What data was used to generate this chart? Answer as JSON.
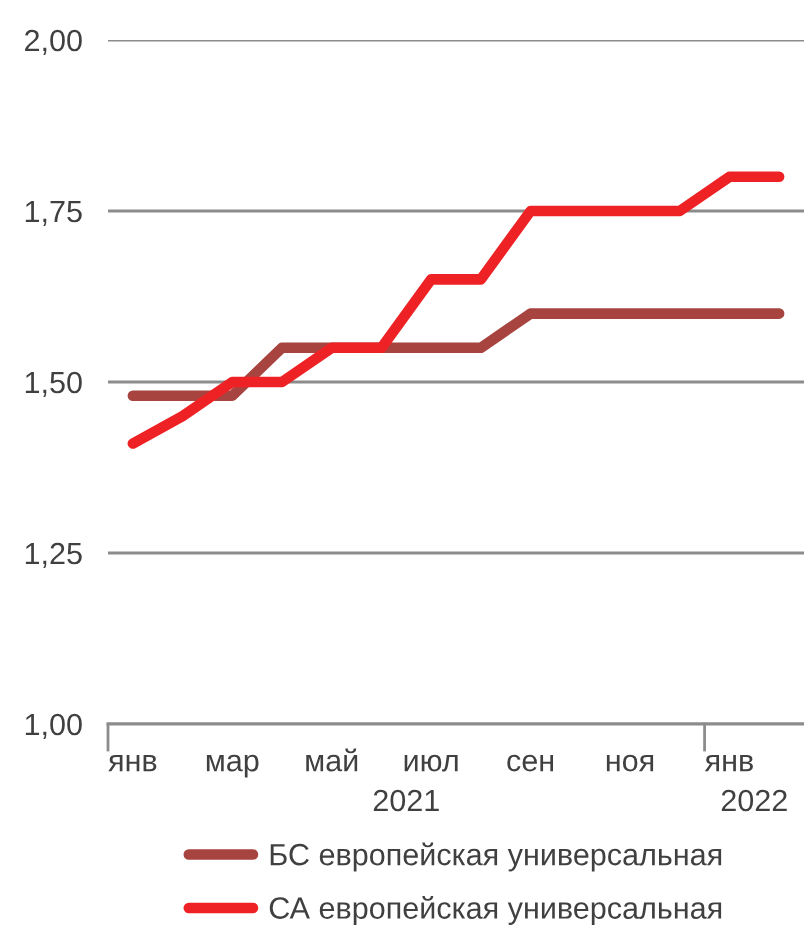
{
  "chart_data": {
    "type": "line",
    "categories": [
      "янв",
      null,
      "мар",
      null,
      "май",
      null,
      "июл",
      null,
      "сен",
      null,
      "ноя",
      null,
      "янв",
      null
    ],
    "series": [
      {
        "name": "БС европейская универсальная",
        "color": "#a84440",
        "values": [
          1.48,
          1.48,
          1.48,
          1.55,
          1.55,
          1.55,
          1.55,
          1.55,
          1.6,
          1.6,
          1.6,
          1.6,
          1.6,
          1.6
        ]
      },
      {
        "name": "СА европейская универсальная",
        "color": "#ee2224",
        "values": [
          1.41,
          1.45,
          1.5,
          1.5,
          1.55,
          1.55,
          1.65,
          1.65,
          1.75,
          1.75,
          1.75,
          1.75,
          1.8,
          1.8
        ]
      }
    ],
    "ylim": [
      1.0,
      2.0
    ],
    "yticks": [
      {
        "value": 1.0,
        "label": "1,00"
      },
      {
        "value": 1.25,
        "label": "1,25"
      },
      {
        "value": 1.5,
        "label": "1,50"
      },
      {
        "value": 1.75,
        "label": "1,75"
      },
      {
        "value": 2.0,
        "label": "2,00"
      }
    ],
    "grid": "y",
    "legend": "bottom",
    "line_style": "solid",
    "annotations": [
      "2021",
      "2022"
    ]
  }
}
